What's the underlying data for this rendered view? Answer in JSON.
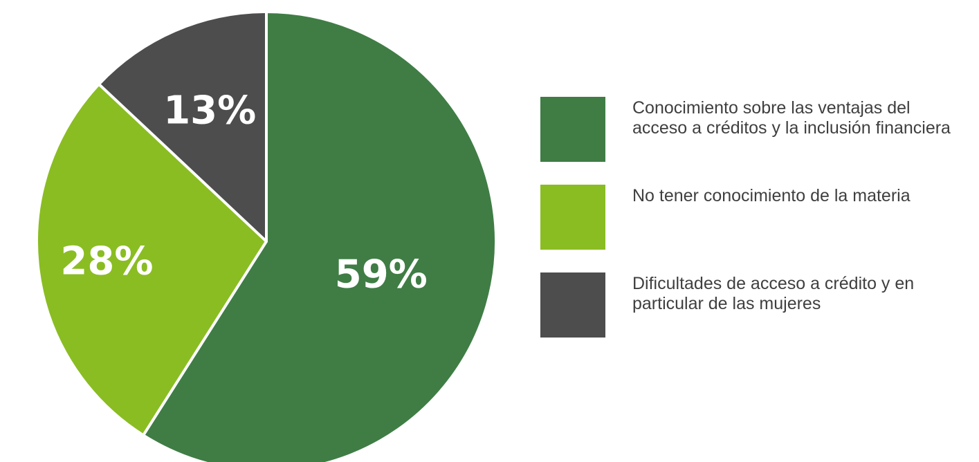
{
  "chart_data": {
    "type": "pie",
    "slices": [
      {
        "label": "Conocimiento sobre las ventajas del acceso a créditos y la inclusión financiera",
        "value": 59,
        "display": "59%",
        "color": "#3f7d45"
      },
      {
        "label": "No tener conocimiento de la materia",
        "value": 28,
        "display": "28%",
        "color": "#8abd22"
      },
      {
        "label": "Dificultades de acceso a crédito y en particular de las mujeres",
        "value": 13,
        "display": "13%",
        "color": "#4d4d4d"
      }
    ],
    "legend_position": "right",
    "start": "top",
    "direction": "clockwise"
  }
}
